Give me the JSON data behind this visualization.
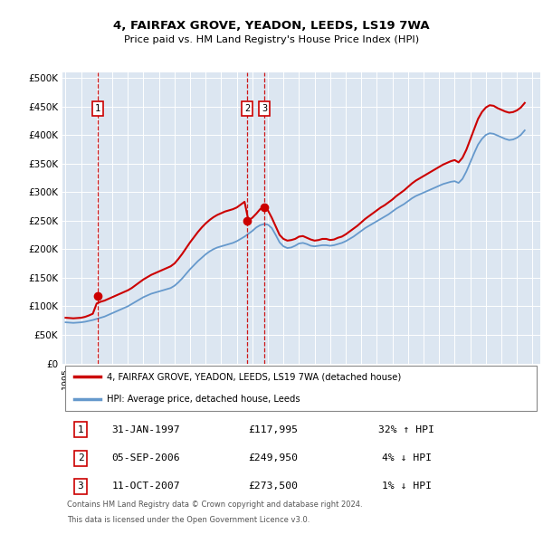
{
  "title": "4, FAIRFAX GROVE, YEADON, LEEDS, LS19 7WA",
  "subtitle": "Price paid vs. HM Land Registry's House Price Index (HPI)",
  "fig_bg": "#ffffff",
  "plot_bg": "#dce6f1",
  "yticks": [
    0,
    50000,
    100000,
    150000,
    200000,
    250000,
    300000,
    350000,
    400000,
    450000,
    500000
  ],
  "ytick_labels": [
    "£0",
    "£50K",
    "£100K",
    "£150K",
    "£200K",
    "£250K",
    "£300K",
    "£350K",
    "£400K",
    "£450K",
    "£500K"
  ],
  "ylim": [
    0,
    510000
  ],
  "xlim_start": 1994.8,
  "xlim_end": 2025.5,
  "xticks": [
    1995,
    1996,
    1997,
    1998,
    1999,
    2000,
    2001,
    2002,
    2003,
    2004,
    2005,
    2006,
    2007,
    2008,
    2009,
    2010,
    2011,
    2012,
    2013,
    2014,
    2015,
    2016,
    2017,
    2018,
    2019,
    2020,
    2021,
    2022,
    2023,
    2024,
    2025
  ],
  "transactions": [
    {
      "num": 1,
      "date": "31-JAN-1997",
      "year": 1997.08,
      "price": 117995,
      "pct": "32%",
      "dir": "↑"
    },
    {
      "num": 2,
      "date": "05-SEP-2006",
      "year": 2006.67,
      "price": 249950,
      "pct": "4%",
      "dir": "↓"
    },
    {
      "num": 3,
      "date": "11-OCT-2007",
      "year": 2007.78,
      "price": 273500,
      "pct": "1%",
      "dir": "↓"
    }
  ],
  "legend_line1": "4, FAIRFAX GROVE, YEADON, LEEDS, LS19 7WA (detached house)",
  "legend_line2": "HPI: Average price, detached house, Leeds",
  "footer1": "Contains HM Land Registry data © Crown copyright and database right 2024.",
  "footer2": "This data is licensed under the Open Government Licence v3.0.",
  "red_color": "#cc0000",
  "blue_color": "#6699cc",
  "hpi_data_x": [
    1995.0,
    1995.25,
    1995.5,
    1995.75,
    1996.0,
    1996.25,
    1996.5,
    1996.75,
    1997.0,
    1997.25,
    1997.5,
    1997.75,
    1998.0,
    1998.25,
    1998.5,
    1998.75,
    1999.0,
    1999.25,
    1999.5,
    1999.75,
    2000.0,
    2000.25,
    2000.5,
    2000.75,
    2001.0,
    2001.25,
    2001.5,
    2001.75,
    2002.0,
    2002.25,
    2002.5,
    2002.75,
    2003.0,
    2003.25,
    2003.5,
    2003.75,
    2004.0,
    2004.25,
    2004.5,
    2004.75,
    2005.0,
    2005.25,
    2005.5,
    2005.75,
    2006.0,
    2006.25,
    2006.5,
    2006.75,
    2007.0,
    2007.25,
    2007.5,
    2007.75,
    2008.0,
    2008.25,
    2008.5,
    2008.75,
    2009.0,
    2009.25,
    2009.5,
    2009.75,
    2010.0,
    2010.25,
    2010.5,
    2010.75,
    2011.0,
    2011.25,
    2011.5,
    2011.75,
    2012.0,
    2012.25,
    2012.5,
    2012.75,
    2013.0,
    2013.25,
    2013.5,
    2013.75,
    2014.0,
    2014.25,
    2014.5,
    2014.75,
    2015.0,
    2015.25,
    2015.5,
    2015.75,
    2016.0,
    2016.25,
    2016.5,
    2016.75,
    2017.0,
    2017.25,
    2017.5,
    2017.75,
    2018.0,
    2018.25,
    2018.5,
    2018.75,
    2019.0,
    2019.25,
    2019.5,
    2019.75,
    2020.0,
    2020.25,
    2020.5,
    2020.75,
    2021.0,
    2021.25,
    2021.5,
    2021.75,
    2022.0,
    2022.25,
    2022.5,
    2022.75,
    2023.0,
    2023.25,
    2023.5,
    2023.75,
    2024.0,
    2024.25,
    2024.5
  ],
  "hpi_data_y": [
    72000,
    71500,
    71000,
    71500,
    72000,
    73000,
    74500,
    76000,
    78000,
    80000,
    82000,
    85000,
    88000,
    91000,
    94000,
    97000,
    100000,
    104000,
    108000,
    112000,
    116000,
    119000,
    122000,
    124000,
    126000,
    128000,
    130000,
    132000,
    136000,
    142000,
    149000,
    157000,
    165000,
    172000,
    179000,
    185000,
    191000,
    196000,
    200000,
    203000,
    205000,
    207000,
    209000,
    211000,
    214000,
    218000,
    222000,
    227000,
    232000,
    238000,
    242000,
    244000,
    243000,
    237000,
    225000,
    212000,
    205000,
    202000,
    203000,
    206000,
    210000,
    211000,
    209000,
    206000,
    205000,
    206000,
    207000,
    207000,
    206000,
    207000,
    209000,
    211000,
    214000,
    218000,
    222000,
    227000,
    232000,
    237000,
    241000,
    245000,
    249000,
    253000,
    257000,
    261000,
    266000,
    271000,
    275000,
    279000,
    284000,
    289000,
    293000,
    296000,
    299000,
    302000,
    305000,
    308000,
    311000,
    314000,
    316000,
    318000,
    319000,
    316000,
    323000,
    336000,
    352000,
    368000,
    383000,
    393000,
    400000,
    403000,
    402000,
    399000,
    396000,
    393000,
    391000,
    392000,
    395000,
    400000,
    408000
  ],
  "red_data_x": [
    1995.0,
    1995.25,
    1995.5,
    1995.75,
    1996.0,
    1996.25,
    1996.5,
    1996.75,
    1997.0,
    1997.25,
    1997.5,
    1997.75,
    1998.0,
    1998.25,
    1998.5,
    1998.75,
    1999.0,
    1999.25,
    1999.5,
    1999.75,
    2000.0,
    2000.25,
    2000.5,
    2000.75,
    2001.0,
    2001.25,
    2001.5,
    2001.75,
    2002.0,
    2002.25,
    2002.5,
    2002.75,
    2003.0,
    2003.25,
    2003.5,
    2003.75,
    2004.0,
    2004.25,
    2004.5,
    2004.75,
    2005.0,
    2005.25,
    2005.5,
    2005.75,
    2006.0,
    2006.25,
    2006.5,
    2006.75,
    2007.0,
    2007.25,
    2007.5,
    2007.75,
    2008.0,
    2008.25,
    2008.5,
    2008.75,
    2009.0,
    2009.25,
    2009.5,
    2009.75,
    2010.0,
    2010.25,
    2010.5,
    2010.75,
    2011.0,
    2011.25,
    2011.5,
    2011.75,
    2012.0,
    2012.25,
    2012.5,
    2012.75,
    2013.0,
    2013.25,
    2013.5,
    2013.75,
    2014.0,
    2014.25,
    2014.5,
    2014.75,
    2015.0,
    2015.25,
    2015.5,
    2015.75,
    2016.0,
    2016.25,
    2016.5,
    2016.75,
    2017.0,
    2017.25,
    2017.5,
    2017.75,
    2018.0,
    2018.25,
    2018.5,
    2018.75,
    2019.0,
    2019.25,
    2019.5,
    2019.75,
    2020.0,
    2020.25,
    2020.5,
    2020.75,
    2021.0,
    2021.25,
    2021.5,
    2021.75,
    2022.0,
    2022.25,
    2022.5,
    2022.75,
    2023.0,
    2023.25,
    2023.5,
    2023.75,
    2024.0,
    2024.25,
    2024.5
  ],
  "red_data_y": [
    80000,
    79500,
    79000,
    79500,
    80000,
    81500,
    84000,
    87000,
    105000,
    108000,
    110000,
    113000,
    116000,
    119000,
    122000,
    125000,
    128000,
    132000,
    137000,
    142000,
    147000,
    151000,
    155000,
    158000,
    161000,
    164000,
    167000,
    170000,
    175000,
    183000,
    192000,
    202000,
    212000,
    221000,
    230000,
    238000,
    245000,
    251000,
    256000,
    260000,
    263000,
    266000,
    268000,
    270000,
    273000,
    278000,
    283000,
    249950,
    255000,
    262000,
    270000,
    273500,
    268000,
    255000,
    240000,
    225000,
    218000,
    215000,
    216000,
    218000,
    222000,
    223000,
    220000,
    217000,
    215000,
    216000,
    218000,
    218000,
    216000,
    217000,
    220000,
    222000,
    226000,
    231000,
    236000,
    241000,
    247000,
    253000,
    258000,
    263000,
    268000,
    273000,
    277000,
    282000,
    287000,
    293000,
    298000,
    303000,
    309000,
    315000,
    320000,
    324000,
    328000,
    332000,
    336000,
    340000,
    344000,
    348000,
    351000,
    354000,
    356000,
    352000,
    360000,
    374000,
    392000,
    410000,
    428000,
    440000,
    448000,
    452000,
    451000,
    447000,
    444000,
    441000,
    439000,
    440000,
    443000,
    448000,
    456000
  ]
}
